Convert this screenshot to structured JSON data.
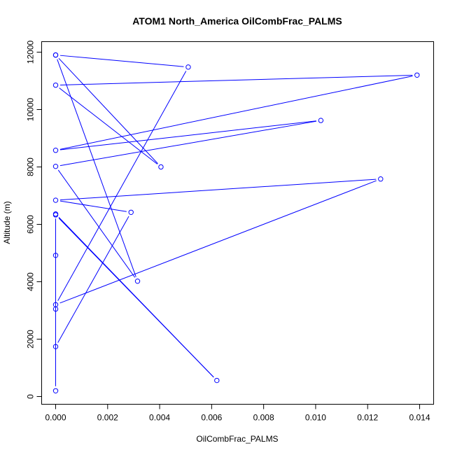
{
  "chart_data": {
    "type": "line",
    "title": "ATOM1 North_America OilCombFrac_PALMS",
    "xlabel": "OilCombFrac_PALMS",
    "ylabel": "Altitude (m)",
    "xlim": [
      0,
      0.014
    ],
    "ylim": [
      0,
      12000
    ],
    "xticks": [
      0,
      0.002,
      0.004,
      0.006,
      0.008,
      0.01,
      0.012,
      0.014
    ],
    "xtick_labels": [
      "0.000",
      "0.002",
      "0.004",
      "0.006",
      "0.008",
      "0.010",
      "0.012",
      "0.014"
    ],
    "yticks": [
      0,
      2000,
      4000,
      6000,
      8000,
      10000,
      12000
    ],
    "ytick_labels": [
      "0",
      "2000",
      "4000",
      "6000",
      "8000",
      "10000",
      "12000"
    ],
    "grid": false,
    "color": "#0000ff",
    "marker": "open-circle",
    "x": [
      0,
      0.00405,
      0,
      0.0139,
      0,
      0.0102,
      0,
      0.00315,
      0,
      0.0051,
      0,
      0.0125,
      0,
      0.0029,
      0,
      0,
      0.0062,
      0,
      0,
      0,
      0
    ],
    "y": [
      11900,
      8000,
      10850,
      11200,
      8580,
      9620,
      8020,
      4020,
      11900,
      11480,
      3200,
      7580,
      6840,
      6420,
      1740,
      6330,
      560,
      6360,
      4920,
      3050,
      200
    ]
  }
}
